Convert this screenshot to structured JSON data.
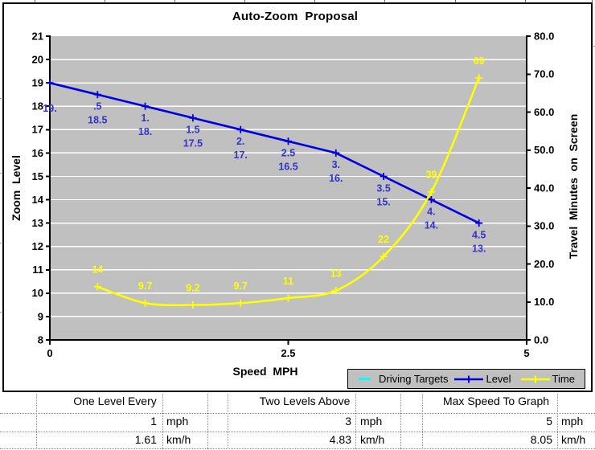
{
  "chart_data": {
    "type": "line",
    "title": "Auto-Zoom  Proposal",
    "xlabel": "Speed  MPH",
    "ylabel_left": "Zoom  Level",
    "ylabel_right": "Travel  Minutes  on  Screen",
    "xlim": [
      0,
      5
    ],
    "ylim_left": [
      8,
      21
    ],
    "ylim_right": [
      0,
      80
    ],
    "x_tick_values": [
      0,
      2.5,
      5
    ],
    "x_tick_labels": [
      "0",
      "2.5",
      "5"
    ],
    "y_left_tick_labels": [
      "21",
      "20",
      "19",
      "18",
      "17",
      "16",
      "15",
      "14",
      "13",
      "12",
      "11",
      "10",
      "9",
      "8"
    ],
    "y_right_tick_labels": [
      "80.0",
      "70.0",
      "60.0",
      "50.0",
      "40.0",
      "30.0",
      "20.0",
      "10.0",
      "0.0"
    ],
    "grid": "horizontal white gridlines on gray plot area",
    "legend_position": "bottom-right",
    "series": [
      {
        "name": "Driving Targets",
        "color": "#00FFFF",
        "marker": "dash",
        "axis": "left",
        "x": [],
        "y": [],
        "point_labels": []
      },
      {
        "name": "Level",
        "color": "#0000E0",
        "label_color": "#3333CC",
        "marker": "plus",
        "axis": "left",
        "smooth": false,
        "x": [
          0,
          0.5,
          1,
          1.5,
          2,
          2.5,
          3,
          3.5,
          4,
          4.5
        ],
        "y": [
          19,
          18.5,
          18,
          17.5,
          17,
          16.5,
          16,
          15,
          14,
          13
        ],
        "point_labels": [
          [
            "",
            "19."
          ],
          [
            ".5",
            "18.5"
          ],
          [
            "1.",
            "18."
          ],
          [
            "1.5",
            "17.5"
          ],
          [
            "2.",
            "17."
          ],
          [
            "2.5",
            "16.5"
          ],
          [
            "3.",
            "16."
          ],
          [
            "3.5",
            "15."
          ],
          [
            "4.",
            "14."
          ],
          [
            "4.5",
            "13."
          ]
        ]
      },
      {
        "name": "Time",
        "color": "#FFFF00",
        "label_color": "#FFFF00",
        "marker": "plus",
        "axis": "right",
        "smooth": true,
        "x": [
          0.5,
          1,
          1.5,
          2,
          2.5,
          3,
          3.5,
          4,
          4.5
        ],
        "y": [
          14,
          9.7,
          9.2,
          9.7,
          11,
          13,
          22,
          39,
          69
        ],
        "point_labels": [
          "14",
          "9.7",
          "9.2",
          "9.7",
          "11",
          "13",
          "22",
          "39",
          "69"
        ]
      }
    ]
  },
  "table": {
    "groups": [
      {
        "header": "One Level Every",
        "mph_value": "1",
        "mph_unit": "mph",
        "kmh_value": "1.61",
        "kmh_unit": "km/h"
      },
      {
        "header": "Two Levels Above",
        "mph_value": "3",
        "mph_unit": "mph",
        "kmh_value": "4.83",
        "kmh_unit": "km/h"
      },
      {
        "header": "Max Speed To Graph",
        "mph_value": "5",
        "mph_unit": "mph",
        "kmh_value": "8.05",
        "kmh_unit": "km/h"
      }
    ]
  },
  "colors": {
    "plot_bg": "#C0C0C0",
    "gridline": "#FFFFFF",
    "legend_bg": "#C0C0C0",
    "level_line": "#0000E0",
    "level_labels": "#3333CC",
    "time_line": "#FFFF00",
    "driving_targets": "#00FFFF"
  }
}
